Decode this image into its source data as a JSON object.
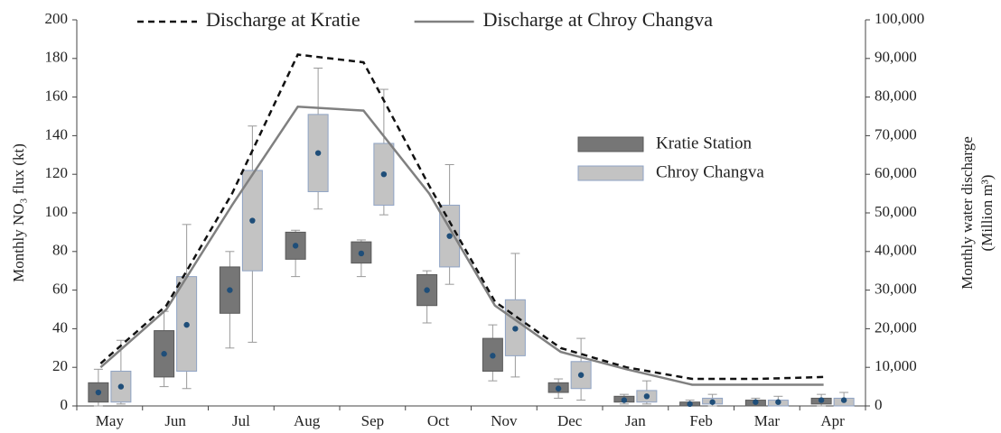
{
  "chart_data": {
    "type": "box",
    "categories": [
      "May",
      "Jun",
      "Jul",
      "Aug",
      "Sep",
      "Oct",
      "Nov",
      "Dec",
      "Jan",
      "Feb",
      "Mar",
      "Apr"
    ],
    "ylabel": "Monthly NO₃ flux (kt)",
    "y2label": [
      "Monthly water discharge",
      "(Million m³)"
    ],
    "ylim": [
      0,
      200
    ],
    "yticks": [
      0,
      20,
      40,
      60,
      80,
      100,
      120,
      140,
      160,
      180,
      200
    ],
    "y2lim": [
      0,
      100000
    ],
    "y2ticks": [
      0,
      {
        "value": 10000,
        "label": "10,000"
      },
      {
        "value": 20000,
        "label": "20,000"
      },
      {
        "value": 30000,
        "label": "30,000"
      },
      {
        "value": 40000,
        "label": "40,000"
      },
      {
        "value": 50000,
        "label": "50,000"
      },
      {
        "value": 60000,
        "label": "60,000"
      },
      {
        "value": 70000,
        "label": "70,000"
      },
      {
        "value": 80000,
        "label": "80,000"
      },
      {
        "value": 90000,
        "label": "90,000"
      },
      {
        "value": 100000,
        "label": "100,000"
      }
    ],
    "series": [
      {
        "name": "Kratie Station",
        "type": "box",
        "color": "#767676",
        "edge": "#5a5a5a",
        "mean_color": "#1f4e79",
        "min": [
          0,
          10,
          30,
          67,
          67,
          43,
          13,
          4,
          1,
          0,
          0,
          0
        ],
        "q1": [
          2,
          15,
          48,
          76,
          74,
          52,
          18,
          7,
          2,
          0,
          0,
          1
        ],
        "q3": [
          12,
          39,
          72,
          90,
          85,
          68,
          35,
          12,
          5,
          2,
          3,
          4
        ],
        "max": [
          19,
          49,
          80,
          91,
          86,
          70,
          42,
          14,
          6,
          3,
          4,
          6
        ],
        "mean": [
          7,
          27,
          60,
          83,
          79,
          60,
          26,
          9,
          3,
          1,
          2,
          3
        ]
      },
      {
        "name": "Chroy Changva",
        "type": "box",
        "color": "#c3c3c3",
        "edge": "#8fa3c4",
        "mean_color": "#1f4e79",
        "min": [
          1,
          9,
          33,
          102,
          99,
          63,
          15,
          3,
          1,
          0,
          0,
          0
        ],
        "q1": [
          2,
          18,
          70,
          111,
          104,
          72,
          26,
          9,
          2,
          1,
          0,
          0
        ],
        "q3": [
          18,
          67,
          122,
          151,
          136,
          104,
          55,
          23,
          8,
          4,
          3,
          4
        ],
        "max": [
          34,
          94,
          145,
          175,
          164,
          125,
          79,
          35,
          13,
          6,
          5,
          7
        ],
        "mean": [
          10,
          42,
          96,
          131,
          120,
          88,
          40,
          16,
          5,
          2,
          2,
          3
        ]
      },
      {
        "name": "Discharge at Kratie",
        "type": "line",
        "axis": "y2",
        "color": "#111111",
        "dash": true,
        "values": [
          11000,
          26000,
          55000,
          91000,
          89000,
          57000,
          27000,
          15000,
          10000,
          7000,
          7000,
          7500
        ]
      },
      {
        "name": "Discharge at Chroy Changva",
        "type": "line",
        "axis": "y2",
        "color": "#808080",
        "dash": false,
        "values": [
          10000,
          25000,
          52000,
          77500,
          76500,
          55000,
          26000,
          14000,
          9500,
          5500,
          5500,
          5500
        ]
      }
    ]
  }
}
